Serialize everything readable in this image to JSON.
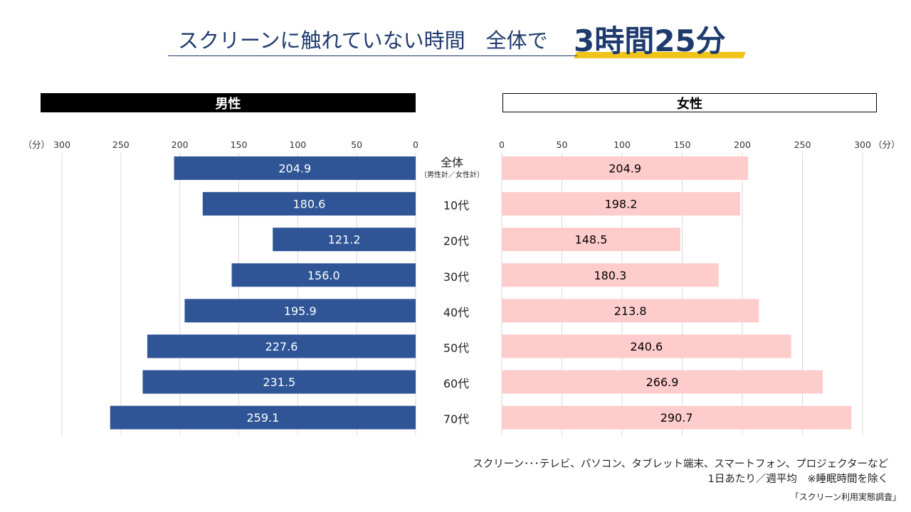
{
  "title": {
    "main": "スクリーンに触れていない時間　全体で",
    "accent": "3時間25分"
  },
  "panels": {
    "male_label": "男性",
    "female_label": "女性"
  },
  "chart_data": {
    "type": "bar",
    "orientation": "horizontal-diverging",
    "axis_unit": "（分）",
    "xlim": [
      0,
      300
    ],
    "ticks": [
      0,
      50,
      100,
      150,
      200,
      250,
      300
    ],
    "grid": true,
    "categories": [
      "全体",
      "10代",
      "20代",
      "30代",
      "40代",
      "50代",
      "60代",
      "70代"
    ],
    "category_subtitles": [
      "（男性計／女性計）",
      "",
      "",
      "",
      "",
      "",
      "",
      ""
    ],
    "series": [
      {
        "name": "男性",
        "values": [
          204.9,
          180.6,
          121.2,
          156.0,
          195.9,
          227.6,
          231.5,
          259.1
        ],
        "value_labels": [
          "204.9",
          "180.6",
          "121.2",
          "156.0",
          "195.9",
          "227.6",
          "231.5",
          "259.1"
        ]
      },
      {
        "name": "女性",
        "values": [
          204.9,
          198.2,
          148.5,
          180.3,
          213.8,
          240.6,
          266.9,
          290.7
        ],
        "value_labels": [
          "204.9",
          "198.2",
          "148.5",
          "180.3",
          "213.8",
          "240.6",
          "266.9",
          "290.7"
        ]
      }
    ],
    "colors": {
      "male": "#2f5597",
      "female": "#ffcccc",
      "male_text": "#ffffff",
      "female_text": "#000000",
      "grid": "#d9d9d9"
    }
  },
  "notes": {
    "line1": "スクリーン･･･テレビ、パソコン、タブレット端末、スマートフォン、プロジェクターなど",
    "line2": "1日あたり／週平均　※睡眠時間を除く",
    "source": "「スクリーン利用実態調査」"
  }
}
